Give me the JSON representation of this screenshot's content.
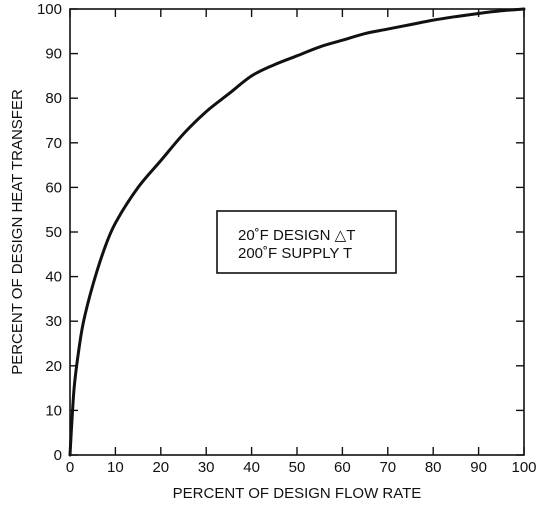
{
  "chart_data": {
    "type": "line",
    "title": "",
    "xlabel": "PERCENT OF DESIGN FLOW RATE",
    "ylabel": "PERCENT OF DESIGN HEAT TRANSFER",
    "xlim": [
      0,
      100
    ],
    "ylim": [
      0,
      100
    ],
    "x_ticks": [
      "0",
      "10",
      "20",
      "30",
      "40",
      "50",
      "60",
      "70",
      "80",
      "90",
      "100"
    ],
    "y_ticks": [
      "0",
      "10",
      "20",
      "30",
      "40",
      "50",
      "60",
      "70",
      "80",
      "90",
      "100"
    ],
    "grid": false,
    "annotation": {
      "line1": "20˚F DESIGN △T",
      "line2": "200˚F SUPPLY T"
    },
    "series": [
      {
        "x": [
          0,
          0.5,
          1,
          2,
          3,
          5,
          7.5,
          10,
          15,
          20,
          25,
          30,
          35,
          40,
          45,
          50,
          55,
          60,
          65,
          70,
          75,
          80,
          85,
          90,
          95,
          100
        ],
        "y": [
          0,
          9,
          16,
          24,
          30,
          38,
          46,
          52,
          60,
          66,
          72,
          77,
          81,
          85,
          87.5,
          89.5,
          91.5,
          93,
          94.5,
          95.5,
          96.5,
          97.5,
          98.3,
          99,
          99.6,
          100
        ]
      }
    ]
  }
}
